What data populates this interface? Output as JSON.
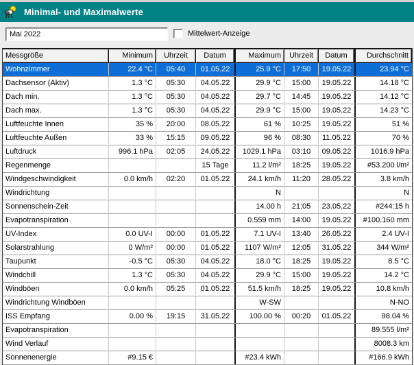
{
  "window": {
    "title": "Minimal- und Maximalwerte"
  },
  "controls": {
    "period_value": "Mai 2022",
    "mittelwert_label": "Mittelwert-Anzeige",
    "mittelwert_checked": false
  },
  "colors": {
    "titlebar": "#008286",
    "selection": "#0e6ed8",
    "icon_sun": "#ffe400",
    "icon_body": "#5a5a5a"
  },
  "table": {
    "columns": [
      "Messgröße",
      "Minimum",
      "Uhrzeit",
      "Datum",
      "Maximum",
      "Uhrzeit",
      "Datum",
      "Durchschnitt"
    ],
    "selected_row_index": 0,
    "rows": [
      [
        "Wohnzimmer",
        "22.4 °C",
        "05:40",
        "01.05.22",
        "25.9 °C",
        "17:50",
        "19.05.22",
        "23.94 °C"
      ],
      [
        "Dachsensor (Aktiv)",
        "1.3 °C",
        "05:30",
        "04.05.22",
        "29.9 °C",
        "15:00",
        "19.05.22",
        "14.18 °C"
      ],
      [
        "Dach min.",
        "1.3 °C",
        "05:30",
        "04.05.22",
        "29.7 °C",
        "14:45",
        "19.05.22",
        "14.12 °C"
      ],
      [
        "Dach max.",
        "1.3 °C",
        "05:30",
        "04.05.22",
        "29.9 °C",
        "15:00",
        "19.05.22",
        "14.23 °C"
      ],
      [
        "Luftfeuchte Innen",
        "35 %",
        "20:00",
        "08.05.22",
        "61 %",
        "10:25",
        "19.05.22",
        "51 %"
      ],
      [
        "Luftfeuchte Außen",
        "33 %",
        "15:15",
        "09.05.22",
        "96 %",
        "08:30",
        "11.05.22",
        "70 %"
      ],
      [
        "Luftdruck",
        "996.1 hPa",
        "02:05",
        "24.05.22",
        "1029.1 hPa",
        "03:10",
        "09.05.22",
        "1016.9 hPa"
      ],
      [
        "Regenmenge",
        "",
        "",
        "15 Tage",
        "11.2 l/m²",
        "18:25",
        "19.05.22",
        "#53.200 l/m²"
      ],
      [
        "Windgeschwindigkeit",
        "0.0 km/h",
        "02:20",
        "01.05.22",
        "24.1 km/h",
        "11:20",
        "28.05.22",
        "3.8 km/h"
      ],
      [
        "Windrichtung",
        "",
        "",
        "",
        "N",
        "",
        "",
        "N"
      ],
      [
        "Sonnenschein-Zeit",
        "",
        "",
        "",
        "14.00 h",
        "21:05",
        "23.05.22",
        "#244:15 h"
      ],
      [
        "Evapotranspiration",
        "",
        "",
        "",
        "0.559 mm",
        "14:00",
        "19.05.22",
        "#100.160 mm"
      ],
      [
        "UV-Index",
        "0.0 UV-I",
        "00:00",
        "01.05.22",
        "7.1 UV-I",
        "13:40",
        "26.05.22",
        "2.4 UV-I"
      ],
      [
        "Solarstrahlung",
        "0 W/m²",
        "00:00",
        "01.05.22",
        "1107 W/m²",
        "12:05",
        "31.05.22",
        "344 W/m²"
      ],
      [
        "Taupunkt",
        "-0.5 °C",
        "05:30",
        "04.05.22",
        "18.0 °C",
        "18:25",
        "19.05.22",
        "8.5 °C"
      ],
      [
        "Windchill",
        "1.3 °C",
        "05:30",
        "04.05.22",
        "29.9 °C",
        "15:00",
        "19.05.22",
        "14.2 °C"
      ],
      [
        "Windböen",
        "0.0 km/h",
        "05:25",
        "01.05.22",
        "51.5 km/h",
        "18:25",
        "19.05.22",
        "10.8 km/h"
      ],
      [
        "Windrichtung Windböen",
        "",
        "",
        "",
        "W-SW",
        "",
        "",
        "N-NO"
      ],
      [
        "ISS Empfang",
        "0.00 %",
        "19:15",
        "31.05.22",
        "100.00 %",
        "00:20",
        "01.05.22",
        "98.04 %"
      ],
      [
        "Evapotranspiration",
        "",
        "",
        "",
        "",
        "",
        "",
        "89.555 l/m²"
      ],
      [
        "Wind Verlauf",
        "",
        "",
        "",
        "",
        "",
        "",
        "8008.3 km"
      ],
      [
        "Sonnenenergie",
        "#9.15 €",
        "",
        "",
        "#23.4 kWh",
        "",
        "",
        "#166.9 kWh"
      ]
    ]
  }
}
